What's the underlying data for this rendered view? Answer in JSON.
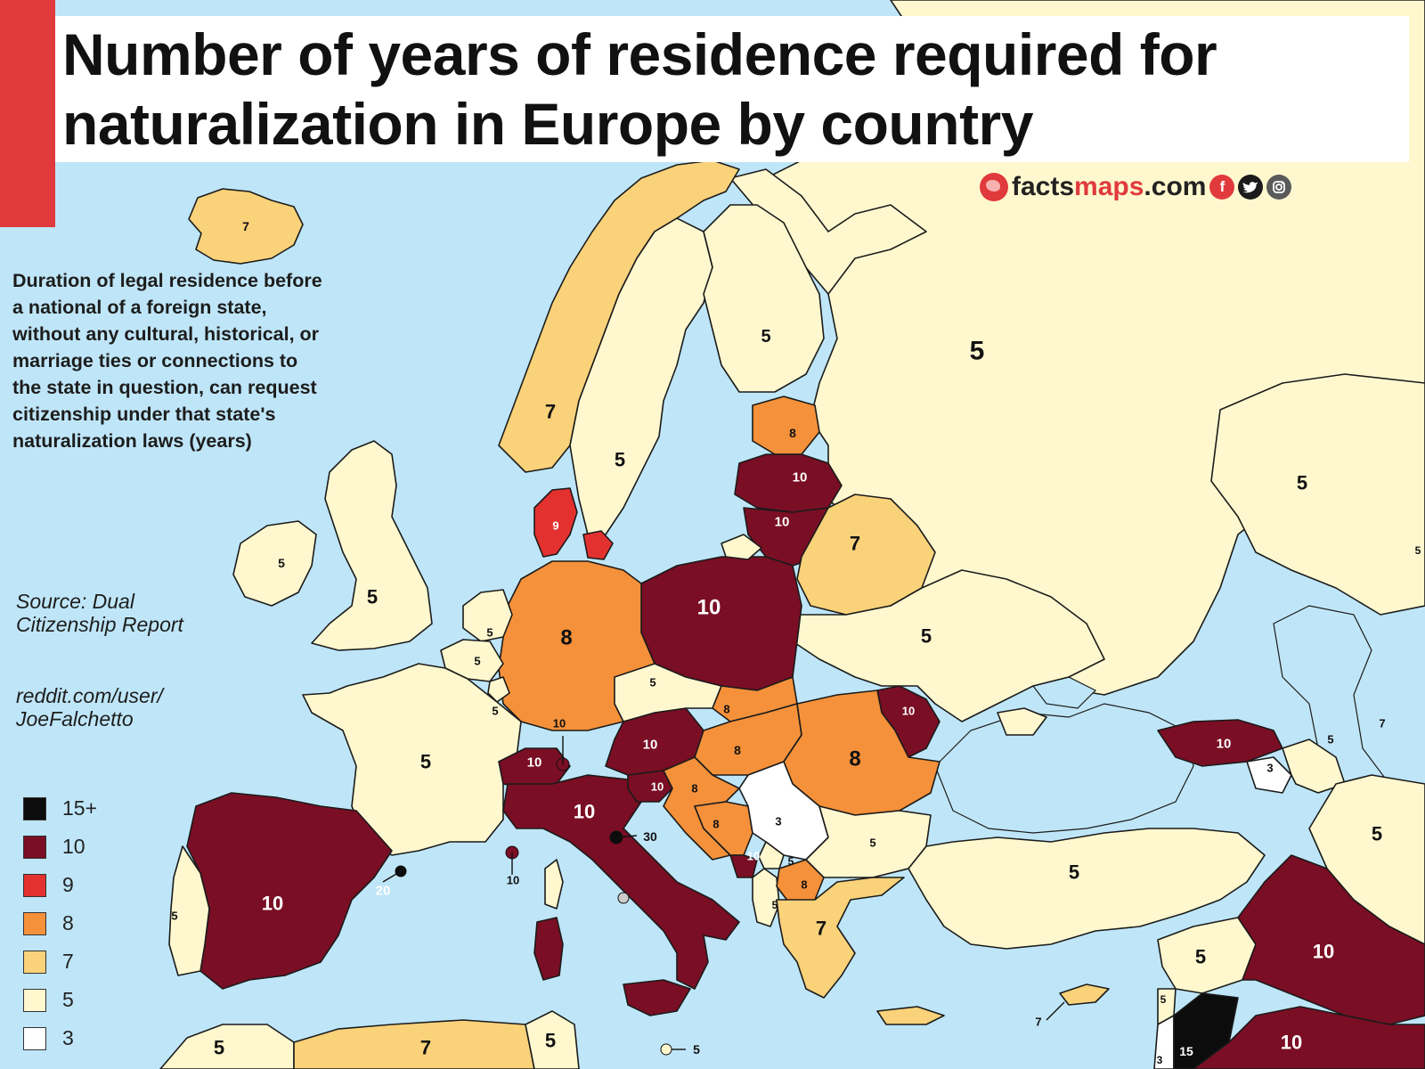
{
  "title": "Number of years of residence required for naturalization in Europe by country",
  "brand": {
    "prefix": "facts",
    "accent": "maps",
    "suffix": ".com",
    "social_icons": [
      "facebook-icon",
      "twitter-icon",
      "instagram-icon"
    ]
  },
  "description": "Duration of legal residence before a national of a foreign state, without any cultural, historical, or marriage ties or connections to the state in question, can request citizenship under that state's naturalization laws (years)",
  "source": "Source: Dual Citizenship Report",
  "credit": "reddit.com/user/ JoeFalchetto",
  "colors": {
    "sea": "#bfe6f8",
    "15+": "#0c0c0c",
    "10": "#7a0e24",
    "9": "#e3312f",
    "8": "#f5913a",
    "7": "#f9d27a",
    "5": "#fff8cf",
    "3": "#ffffff",
    "accent": "#e03a3c"
  },
  "legend": [
    {
      "label": "15+",
      "color": "#0c0c0c"
    },
    {
      "label": "10",
      "color": "#7a0e24"
    },
    {
      "label": "9",
      "color": "#e3312f"
    },
    {
      "label": "8",
      "color": "#f5913a"
    },
    {
      "label": "7",
      "color": "#f9d27a"
    },
    {
      "label": "5",
      "color": "#fff8cf"
    },
    {
      "label": "3",
      "color": "#ffffff"
    }
  ],
  "map_labels": {
    "iceland": "7",
    "norway": "7",
    "sweden": "5",
    "finland": "5",
    "russia": "5",
    "estonia": "8",
    "latvia": "10",
    "lithuania": "10",
    "belarus": "7",
    "ukraine": "5",
    "poland": "10",
    "germany": "8",
    "denmark": "9",
    "ireland": "5",
    "uk": "5",
    "netherlands": "5",
    "belgium": "5",
    "luxembourg": "5",
    "france": "5",
    "spain": "10",
    "portugal": "5",
    "andorra": "20",
    "monaco": "10",
    "switzerland": "10",
    "liechtenstein": "10",
    "austria": "10",
    "czechia": "5",
    "slovakia": "8",
    "hungary": "8",
    "romania": "8",
    "moldova": "10",
    "slovenia": "10",
    "croatia": "8",
    "bosnia": "8",
    "serbia": "3",
    "montenegro": "10",
    "kosovo": "5",
    "albania": "5",
    "north_macedonia": "8",
    "bulgaria": "5",
    "greece": "7",
    "italy": "10",
    "san_marino": "30",
    "malta": "5",
    "turkey": "5",
    "georgia": "10",
    "armenia": "3",
    "azerbaijan": "5",
    "kazakhstan": "5",
    "turkmenistan": "7",
    "iran": "5",
    "iraq": "10",
    "syria": "5",
    "lebanon": "5",
    "israel": "3",
    "jordan": "15",
    "saudi_arabia": "10",
    "cyprus": "7",
    "morocco": "5",
    "algeria": "7",
    "tunisia": "5",
    "far_east_edge": "5"
  }
}
